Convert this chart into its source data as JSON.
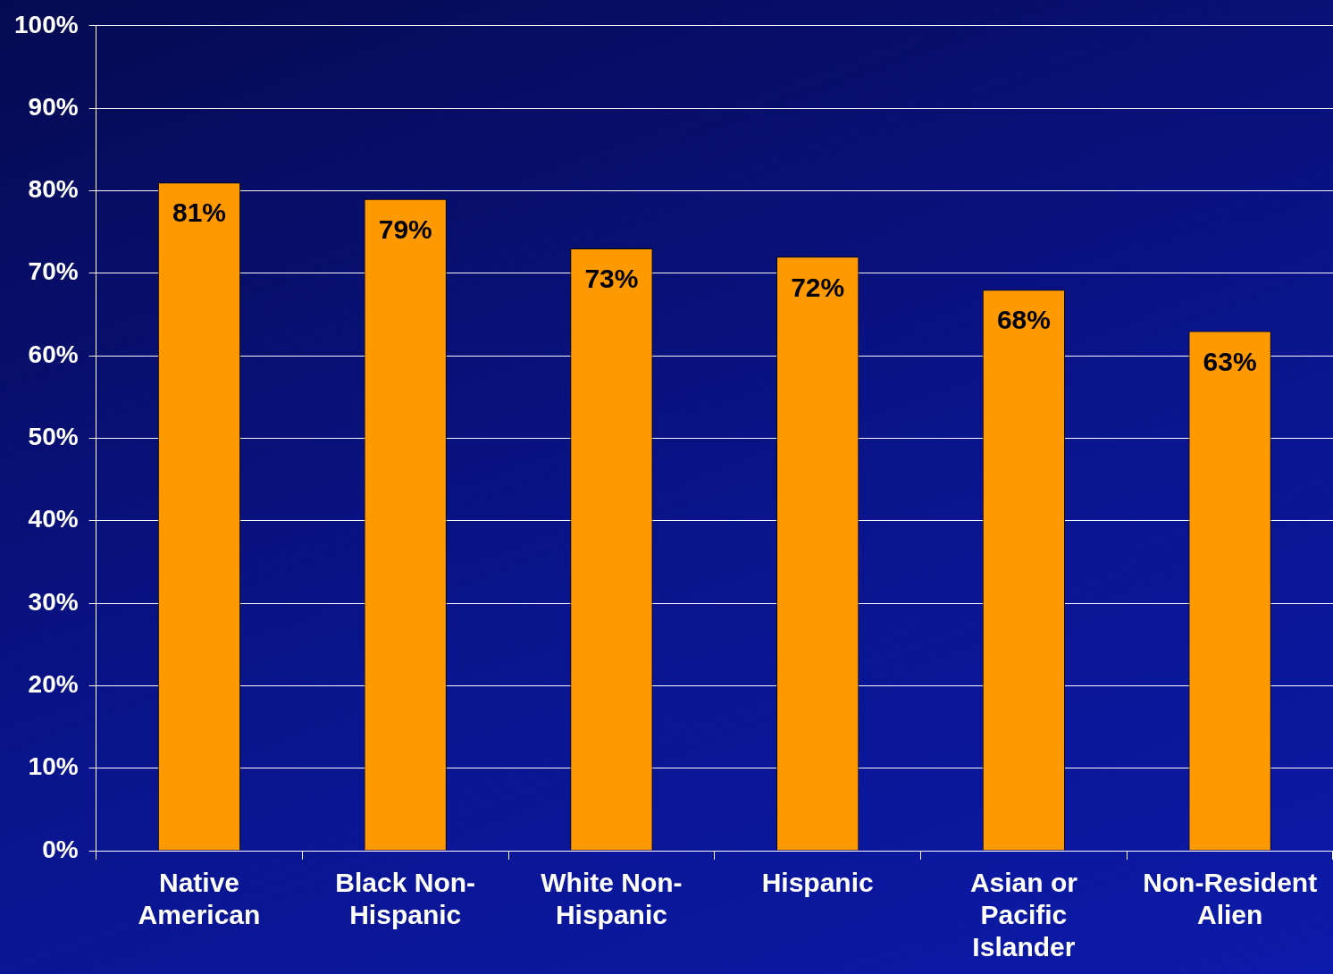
{
  "chart_data": {
    "type": "bar",
    "categories": [
      "Native American",
      "Black Non-Hispanic",
      "White Non-Hispanic",
      "Hispanic",
      "Asian or Pacific Islander",
      "Non-Resident Alien"
    ],
    "values": [
      81,
      79,
      73,
      72,
      68,
      63
    ],
    "value_labels": [
      "81%",
      "79%",
      "73%",
      "72%",
      "68%",
      "63%"
    ],
    "color": "#ff9900",
    "ylim": [
      0,
      100
    ],
    "yticks": [
      {
        "value": 0,
        "label": "0%"
      },
      {
        "value": 10,
        "label": "10%"
      },
      {
        "value": 20,
        "label": "20%"
      },
      {
        "value": 30,
        "label": "30%"
      },
      {
        "value": 40,
        "label": "40%"
      },
      {
        "value": 50,
        "label": "50%"
      },
      {
        "value": 60,
        "label": "60%"
      },
      {
        "value": 70,
        "label": "70%"
      },
      {
        "value": 80,
        "label": "80%"
      },
      {
        "value": 90,
        "label": "90%"
      },
      {
        "value": 100,
        "label": "100%"
      }
    ],
    "grid": "y",
    "legend": false
  }
}
